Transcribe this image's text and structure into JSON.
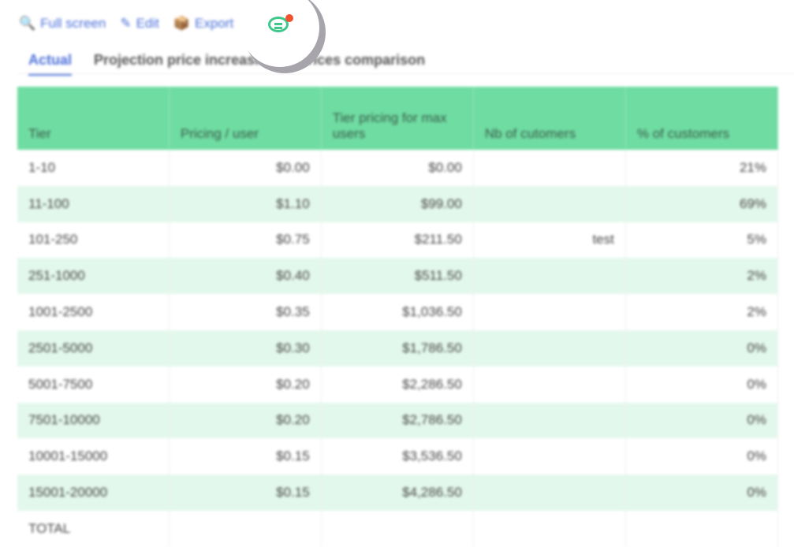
{
  "toolbar": {
    "full_screen": "Full screen",
    "edit": "Edit",
    "export": "Export",
    "export_partial": "rt",
    "icons": [
      "search-icon",
      "pencil-icon",
      "export-icon",
      "chat-icon"
    ],
    "notification_color": "#f0522f"
  },
  "tabs": [
    {
      "label": "Actual",
      "active": true
    },
    {
      "label": "Projection price increasing"
    },
    {
      "label": "Prices comparison"
    }
  ],
  "table": {
    "headers": [
      "Tier",
      "Pricing / user",
      "Tier pricing for max users",
      "Nb of cutomers",
      "% of customers"
    ],
    "rows": [
      [
        "1-10",
        "$0.00",
        "$0.00",
        "",
        "21%"
      ],
      [
        "11-100",
        "$1.10",
        "$99.00",
        "",
        "69%"
      ],
      [
        "101-250",
        "$0.75",
        "$211.50",
        "test",
        "5%"
      ],
      [
        "251-1000",
        "$0.40",
        "$511.50",
        "",
        "2%"
      ],
      [
        "1001-2500",
        "$0.35",
        "$1,036.50",
        "",
        "2%"
      ],
      [
        "2501-5000",
        "$0.30",
        "$1,786.50",
        "",
        "0%"
      ],
      [
        "5001-7500",
        "$0.20",
        "$2,286.50",
        "",
        "0%"
      ],
      [
        "7501-10000",
        "$0.20",
        "$2,786.50",
        "",
        "0%"
      ],
      [
        "10001-15000",
        "$0.15",
        "$3,536.50",
        "",
        "0%"
      ],
      [
        "15001-20000",
        "$0.15",
        "$4,286.50",
        "",
        "0%"
      ],
      [
        "TOTAL",
        "",
        "",
        "",
        ""
      ]
    ]
  },
  "colors": {
    "header": "#6fdca2",
    "stripe": "#e3f8ec",
    "accent": "#4a6fd8"
  }
}
